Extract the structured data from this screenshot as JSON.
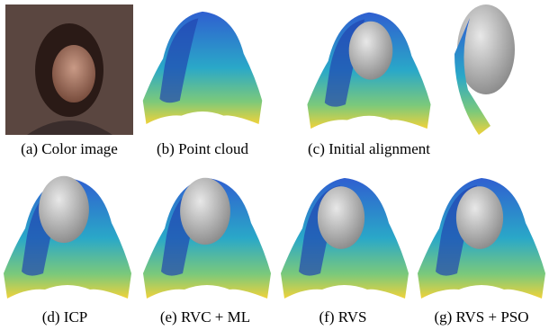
{
  "figure": {
    "panels": [
      {
        "caption": "(a) Color image"
      },
      {
        "caption": "(b) Point cloud"
      },
      {
        "caption": "(c) Initial alignment"
      },
      {
        "caption": "(d) ICP"
      },
      {
        "caption": "(e) RVC + ML"
      },
      {
        "caption": "(f) RVS"
      },
      {
        "caption": "(g) RVS + PSO"
      }
    ]
  }
}
